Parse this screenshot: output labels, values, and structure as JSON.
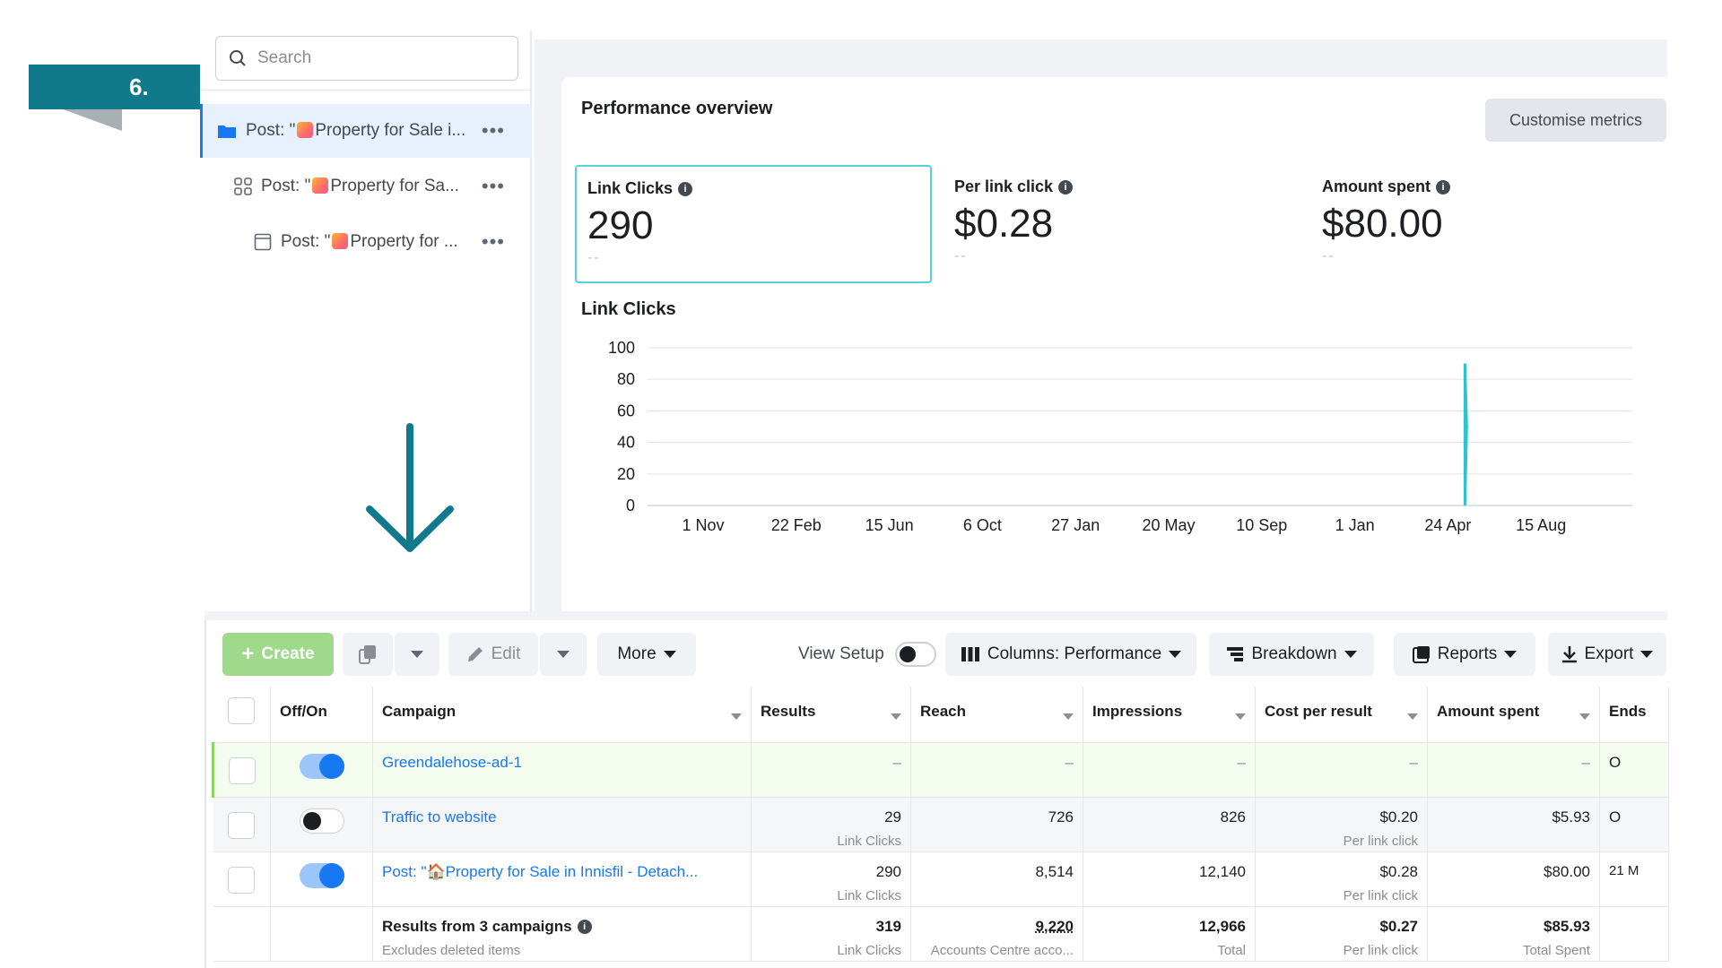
{
  "step_badge": "6.",
  "sidebar": {
    "search_placeholder": "Search",
    "items": [
      {
        "prefix": "Post: \"",
        "label": "Property for Sale i..."
      },
      {
        "prefix": "Post: \"",
        "label": "Property for Sa..."
      },
      {
        "prefix": "Post: \"",
        "label": "Property for ..."
      }
    ],
    "more": "•••"
  },
  "performance": {
    "title": "Performance overview",
    "customise_label": "Customise metrics",
    "metrics": [
      {
        "name": "Link Clicks",
        "value": "290",
        "sub": "--"
      },
      {
        "name": "Per link click",
        "value": "$0.28",
        "sub": "--"
      },
      {
        "name": "Amount spent",
        "value": "$80.00",
        "sub": "--"
      }
    ],
    "chart_title": "Link Clicks"
  },
  "chart_data": {
    "type": "line",
    "title": "Link Clicks",
    "x_tick_labels": [
      "1 Nov",
      "22 Feb",
      "15 Jun",
      "6 Oct",
      "27 Jan",
      "20 May",
      "10 Sep",
      "1 Jan",
      "24 Apr",
      "15 Aug"
    ],
    "y_ticks": [
      0,
      20,
      40,
      60,
      80,
      100
    ],
    "ylim": [
      0,
      100
    ],
    "grid": true,
    "series": [
      {
        "color": "#2ec4cf",
        "x_position": 0.83,
        "values": [
          0,
          90,
          50,
          0
        ]
      }
    ]
  },
  "toolbar": {
    "create": "Create",
    "edit": "Edit",
    "more": "More",
    "view_setup": "View Setup",
    "columns": "Columns: Performance",
    "breakdown": "Breakdown",
    "reports": "Reports",
    "export": "Export"
  },
  "table": {
    "headers": [
      "Off/On",
      "Campaign",
      "Results",
      "Reach",
      "Impressions",
      "Cost per result",
      "Amount spent",
      "Ends"
    ],
    "rows": [
      {
        "campaign": "Greendalehose-ad-1",
        "results": "–",
        "results_sub": "",
        "reach": "–",
        "impressions": "–",
        "cpr": "–",
        "cpr_sub": "",
        "spent": "–",
        "ends": "O"
      },
      {
        "campaign": "Traffic to website",
        "results": "29",
        "results_sub": "Link Clicks",
        "reach": "726",
        "impressions": "826",
        "cpr": "$0.20",
        "cpr_sub": "Per link click",
        "spent": "$5.93",
        "ends": "O"
      },
      {
        "campaign": "Post: \"🏠Property for Sale in Innisfil - Detach...",
        "results": "290",
        "results_sub": "Link Clicks",
        "reach": "8,514",
        "impressions": "12,140",
        "cpr": "$0.28",
        "cpr_sub": "Per link click",
        "spent": "$80.00",
        "ends": "21 M"
      }
    ],
    "totals": {
      "label": "Results from 3 campaigns",
      "sub": "Excludes deleted items",
      "results": "319",
      "results_sub": "Link Clicks",
      "reach": "9,220",
      "reach_sub": "Accounts Centre acco...",
      "impressions": "12,966",
      "impressions_sub": "Total",
      "cpr": "$0.27",
      "cpr_sub": "Per link click",
      "spent": "$85.93",
      "spent_sub": "Total Spent"
    }
  },
  "colors": {
    "accent": "#1877f2",
    "teal": "#10798c",
    "line": "#2ec4cf",
    "create": "#9fd98b"
  }
}
